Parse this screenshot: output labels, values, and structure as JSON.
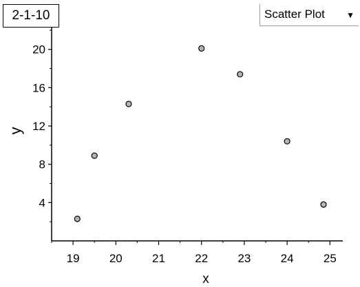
{
  "tab": {
    "label": "2-1-10"
  },
  "plot_type": {
    "selected": "Scatter Plot",
    "icon": "chevron-down-icon"
  },
  "colors": {
    "marker_fill": "#b3b3b3",
    "marker_stroke": "#000000",
    "axis": "#000000"
  },
  "chart_data": {
    "type": "scatter",
    "title": "",
    "xlabel": "x",
    "ylabel": "y",
    "xlim": [
      18.5,
      25.3
    ],
    "ylim": [
      0,
      23
    ],
    "xticks": [
      19,
      20,
      21,
      22,
      23,
      24,
      25
    ],
    "yticks": [
      4,
      8,
      12,
      16,
      20
    ],
    "grid": false,
    "legend": "none",
    "series": [
      {
        "x": [
          19.1,
          19.5,
          20.3,
          22.0,
          22.9,
          24.0,
          24.85
        ],
        "y": [
          2.3,
          8.9,
          14.3,
          20.1,
          17.4,
          10.4,
          3.8
        ]
      }
    ]
  }
}
